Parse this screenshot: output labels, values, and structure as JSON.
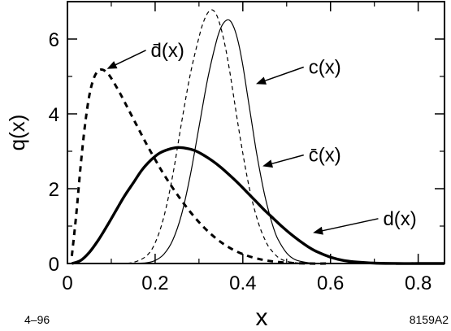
{
  "chart_data": {
    "type": "line",
    "xlabel": "x",
    "ylabel": "q(x)",
    "xlim": [
      0,
      0.86
    ],
    "ylim": [
      0,
      7.0
    ],
    "x_ticks": [
      0,
      0.2,
      0.4,
      0.6,
      0.8
    ],
    "x_tick_labels": [
      "0",
      "0.2",
      "0.4",
      "0.6",
      "0.8"
    ],
    "y_ticks": [
      0,
      2,
      4,
      6
    ],
    "y_tick_labels": [
      "0",
      "2",
      "4",
      "6"
    ],
    "grid": false,
    "legend": "none",
    "series": [
      {
        "name": "d(x)",
        "style": "thick-solid",
        "x": [
          0.01,
          0.03,
          0.05,
          0.07,
          0.09,
          0.11,
          0.13,
          0.15,
          0.17,
          0.19,
          0.21,
          0.23,
          0.25,
          0.27,
          0.29,
          0.31,
          0.33,
          0.35,
          0.37,
          0.39,
          0.41,
          0.43,
          0.45,
          0.47,
          0.49,
          0.51,
          0.53,
          0.55,
          0.57,
          0.6,
          0.63,
          0.66,
          0.7,
          0.75,
          0.8,
          0.86
        ],
        "y": [
          0.0,
          0.08,
          0.3,
          0.62,
          1.0,
          1.4,
          1.8,
          2.15,
          2.5,
          2.76,
          2.95,
          3.05,
          3.1,
          3.08,
          3.02,
          2.9,
          2.75,
          2.57,
          2.36,
          2.14,
          1.9,
          1.66,
          1.42,
          1.2,
          0.98,
          0.78,
          0.6,
          0.44,
          0.31,
          0.17,
          0.08,
          0.04,
          0.01,
          0.0,
          0.0,
          0.0
        ]
      },
      {
        "name": "d̄(x)",
        "style": "thick-dashed",
        "x": [
          0.01,
          0.02,
          0.03,
          0.04,
          0.05,
          0.06,
          0.07,
          0.08,
          0.09,
          0.1,
          0.12,
          0.14,
          0.16,
          0.18,
          0.2,
          0.22,
          0.25,
          0.28,
          0.31,
          0.34,
          0.37,
          0.4,
          0.43,
          0.46,
          0.5,
          0.55,
          0.6
        ],
        "y": [
          0.2,
          1.3,
          2.6,
          3.7,
          4.5,
          4.95,
          5.15,
          5.18,
          5.1,
          4.95,
          4.55,
          4.1,
          3.65,
          3.2,
          2.78,
          2.38,
          1.85,
          1.38,
          0.98,
          0.66,
          0.42,
          0.25,
          0.14,
          0.07,
          0.02,
          0.0,
          0.0
        ]
      },
      {
        "name": "c(x)",
        "style": "thin-solid",
        "x": [
          0.15,
          0.18,
          0.2,
          0.22,
          0.24,
          0.26,
          0.28,
          0.3,
          0.32,
          0.34,
          0.35,
          0.36,
          0.37,
          0.38,
          0.39,
          0.4,
          0.41,
          0.42,
          0.43,
          0.44,
          0.45,
          0.46,
          0.47,
          0.48,
          0.5,
          0.52,
          0.55,
          0.58,
          0.6
        ],
        "y": [
          0.0,
          0.02,
          0.08,
          0.25,
          0.62,
          1.3,
          2.35,
          3.65,
          4.95,
          5.95,
          6.3,
          6.48,
          6.5,
          6.3,
          5.9,
          5.3,
          4.55,
          3.8,
          3.05,
          2.4,
          1.82,
          1.35,
          0.95,
          0.65,
          0.28,
          0.1,
          0.02,
          0.0,
          0.0
        ]
      },
      {
        "name": "c̄(x)",
        "style": "thin-dashed",
        "x": [
          0.12,
          0.15,
          0.18,
          0.2,
          0.22,
          0.24,
          0.26,
          0.28,
          0.3,
          0.31,
          0.32,
          0.33,
          0.34,
          0.35,
          0.36,
          0.37,
          0.38,
          0.39,
          0.4,
          0.41,
          0.42,
          0.43,
          0.44,
          0.45,
          0.46,
          0.48,
          0.5,
          0.53,
          0.56
        ],
        "y": [
          0.0,
          0.03,
          0.2,
          0.55,
          1.25,
          2.35,
          3.75,
          5.05,
          6.05,
          6.45,
          6.7,
          6.78,
          6.65,
          6.3,
          5.8,
          5.15,
          4.4,
          3.65,
          2.95,
          2.3,
          1.75,
          1.3,
          0.93,
          0.65,
          0.43,
          0.17,
          0.06,
          0.01,
          0.0
        ]
      }
    ],
    "annotations": [
      {
        "label": "d̄(x)",
        "target_series": "d̄(x)",
        "text_x": 0.19,
        "text_y": 5.7,
        "arrow_x": 0.09,
        "arrow_y": 5.2
      },
      {
        "label": "c(x)",
        "target_series": "c(x)",
        "text_x": 0.55,
        "text_y": 5.25,
        "arrow_x": 0.43,
        "arrow_y": 4.8
      },
      {
        "label": "c̄(x)",
        "target_series": "c̄(x)",
        "text_x": 0.55,
        "text_y": 2.9,
        "arrow_x": 0.445,
        "arrow_y": 2.6
      },
      {
        "label": "d(x)",
        "target_series": "d(x)",
        "text_x": 0.72,
        "text_y": 1.2,
        "arrow_x": 0.56,
        "arrow_y": 0.82
      }
    ]
  },
  "footer": {
    "left_code": "4–96",
    "right_code": "8159A2"
  }
}
